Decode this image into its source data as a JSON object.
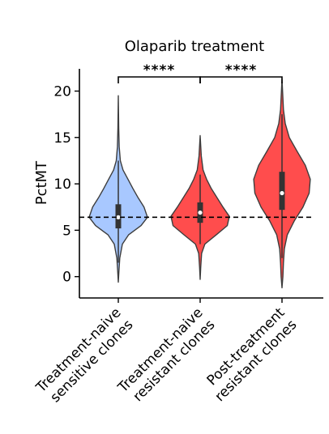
{
  "chart_data": {
    "type": "violin",
    "title": "Olaparib treatment",
    "xlabel": "",
    "ylabel": "PctMT",
    "ylim": [
      -2.3,
      22.4
    ],
    "yticks": [
      0,
      5,
      10,
      15,
      20
    ],
    "ytick_labels": [
      "0",
      "5",
      "10",
      "15",
      "20"
    ],
    "reference_line": {
      "y": 6.4,
      "style": "dashed",
      "color": "#000000"
    },
    "grid": false,
    "legend": "none",
    "categories": [
      [
        "Treatment-naive",
        "sensitive clones"
      ],
      [
        "Treatment-naive",
        "resistant clones"
      ],
      [
        "Post-treatment",
        "resistant clones"
      ]
    ],
    "series": [
      {
        "color": "#a8c8ff",
        "min": -0.6,
        "max": 19.5,
        "q1": 5.2,
        "median": 6.4,
        "q3": 7.8,
        "whisker_low": 1.5,
        "whisker_high": 12.5,
        "density": [
          [
            -0.6,
            0.0
          ],
          [
            0.5,
            0.02
          ],
          [
            2.0,
            0.05
          ],
          [
            3.5,
            0.14
          ],
          [
            4.5,
            0.35
          ],
          [
            5.5,
            0.78
          ],
          [
            6.4,
            1.0
          ],
          [
            7.5,
            0.88
          ],
          [
            8.5,
            0.68
          ],
          [
            9.5,
            0.5
          ],
          [
            10.5,
            0.33
          ],
          [
            11.5,
            0.16
          ],
          [
            12.5,
            0.07
          ],
          [
            14.0,
            0.03
          ],
          [
            16.0,
            0.015
          ],
          [
            19.5,
            0.0
          ]
        ]
      },
      {
        "color": "#ff4d4d",
        "min": -0.3,
        "max": 15.2,
        "q1": 5.8,
        "median": 6.9,
        "q3": 8.0,
        "whisker_low": 3.5,
        "whisker_high": 11.0,
        "density": [
          [
            -0.3,
            0.0
          ],
          [
            1.0,
            0.02
          ],
          [
            2.5,
            0.05
          ],
          [
            3.5,
            0.16
          ],
          [
            4.5,
            0.55
          ],
          [
            5.5,
            0.93
          ],
          [
            6.5,
            1.0
          ],
          [
            7.5,
            0.78
          ],
          [
            8.5,
            0.58
          ],
          [
            9.5,
            0.38
          ],
          [
            10.5,
            0.22
          ],
          [
            11.5,
            0.1
          ],
          [
            13.0,
            0.04
          ],
          [
            15.2,
            0.0
          ]
        ]
      },
      {
        "color": "#ff4d4d",
        "min": -1.2,
        "max": 21.3,
        "q1": 7.2,
        "median": 9.0,
        "q3": 11.3,
        "whisker_low": 2.0,
        "whisker_high": 17.5,
        "density": [
          [
            -1.2,
            0.0
          ],
          [
            0.0,
            0.03
          ],
          [
            1.5,
            0.05
          ],
          [
            3.0,
            0.08
          ],
          [
            4.5,
            0.18
          ],
          [
            6.0,
            0.42
          ],
          [
            7.5,
            0.72
          ],
          [
            9.0,
            0.93
          ],
          [
            10.5,
            0.97
          ],
          [
            12.0,
            0.8
          ],
          [
            13.5,
            0.52
          ],
          [
            15.0,
            0.25
          ],
          [
            16.5,
            0.11
          ],
          [
            18.0,
            0.05
          ],
          [
            20.0,
            0.02
          ],
          [
            21.3,
            0.0
          ]
        ]
      }
    ],
    "significance": [
      {
        "from": 0,
        "to": 1,
        "label": "****"
      },
      {
        "from": 1,
        "to": 2,
        "label": "****"
      }
    ]
  }
}
